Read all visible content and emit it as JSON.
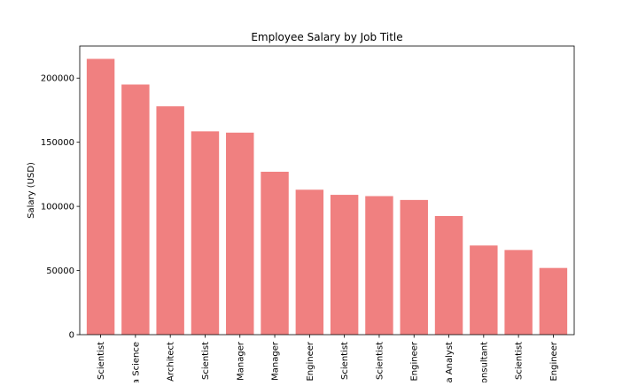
{
  "chart_data": {
    "type": "bar",
    "title": "Employee Salary by Job Title",
    "xlabel": "",
    "ylabel": "Salary (USD)",
    "categories": [
      "Scientist",
      "a Science",
      "Architect",
      "Scientist",
      "Manager",
      "Manager",
      "Engineer",
      "Scientist",
      "Scientist",
      "Engineer",
      "a Analyst",
      "onsultant",
      "Scientist",
      "Engineer"
    ],
    "values": [
      215000,
      195000,
      178000,
      158500,
      157500,
      127000,
      113000,
      109000,
      108000,
      105000,
      92500,
      69500,
      66000,
      52000
    ],
    "ylim": [
      0,
      225000
    ],
    "yticks": [
      0,
      50000,
      100000,
      150000,
      200000
    ],
    "grid": false,
    "legend": "none",
    "colors": {
      "bar": "#f08080",
      "axis": "#000000",
      "background": "#ffffff"
    }
  }
}
